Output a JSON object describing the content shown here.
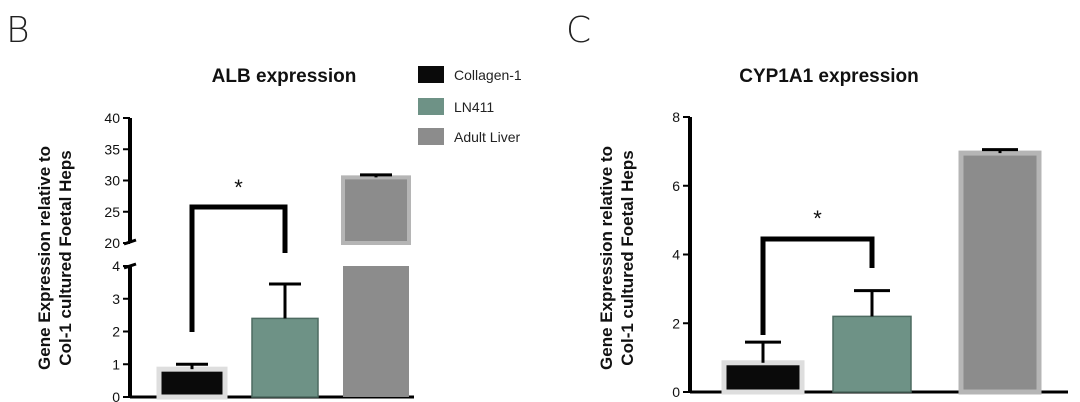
{
  "panels": [
    "B",
    "C"
  ],
  "legend": {
    "entries": [
      {
        "label": "Collagen-1",
        "color": "#0a0a0a"
      },
      {
        "label": "LN411",
        "color": "#6e9286"
      },
      {
        "label": "Adult Liver",
        "color": "#8c8c8c"
      }
    ]
  },
  "ylabel_lines": [
    "Gene Expression relative to",
    "Col-1 cultured Foetal Heps"
  ],
  "chart_data": [
    {
      "type": "bar",
      "panel": "B",
      "title": "ALB expression",
      "categories": [
        "Collagen-1",
        "LN411",
        "Adult Liver"
      ],
      "values": [
        0.85,
        2.4,
        30.5
      ],
      "error_upper": [
        1.0,
        3.45,
        30.9
      ],
      "axis_break": {
        "lower": [
          0,
          4
        ],
        "upper": [
          20,
          40
        ]
      },
      "yticks_lower": [
        "0",
        "1",
        "2",
        "3",
        "4"
      ],
      "yticks_upper": [
        "20",
        "25",
        "30",
        "35",
        "40"
      ],
      "significance": {
        "label": "*",
        "between": [
          "Collagen-1",
          "LN411"
        ]
      },
      "colors": [
        "#0a0a0a",
        "#6e9286",
        "#8c8c8c"
      ]
    },
    {
      "type": "bar",
      "panel": "C",
      "title": "CYP1A1 expression",
      "categories": [
        "Collagen-1",
        "LN411",
        "Adult Liver"
      ],
      "values": [
        0.85,
        2.2,
        6.95
      ],
      "error_upper": [
        1.45,
        2.95,
        7.05
      ],
      "ylim": [
        0,
        8
      ],
      "yticks": [
        "0",
        "2",
        "4",
        "6",
        "8"
      ],
      "significance": {
        "label": "*",
        "between": [
          "Collagen-1",
          "LN411"
        ]
      },
      "colors": [
        "#0a0a0a",
        "#6e9286",
        "#8c8c8c"
      ]
    }
  ]
}
